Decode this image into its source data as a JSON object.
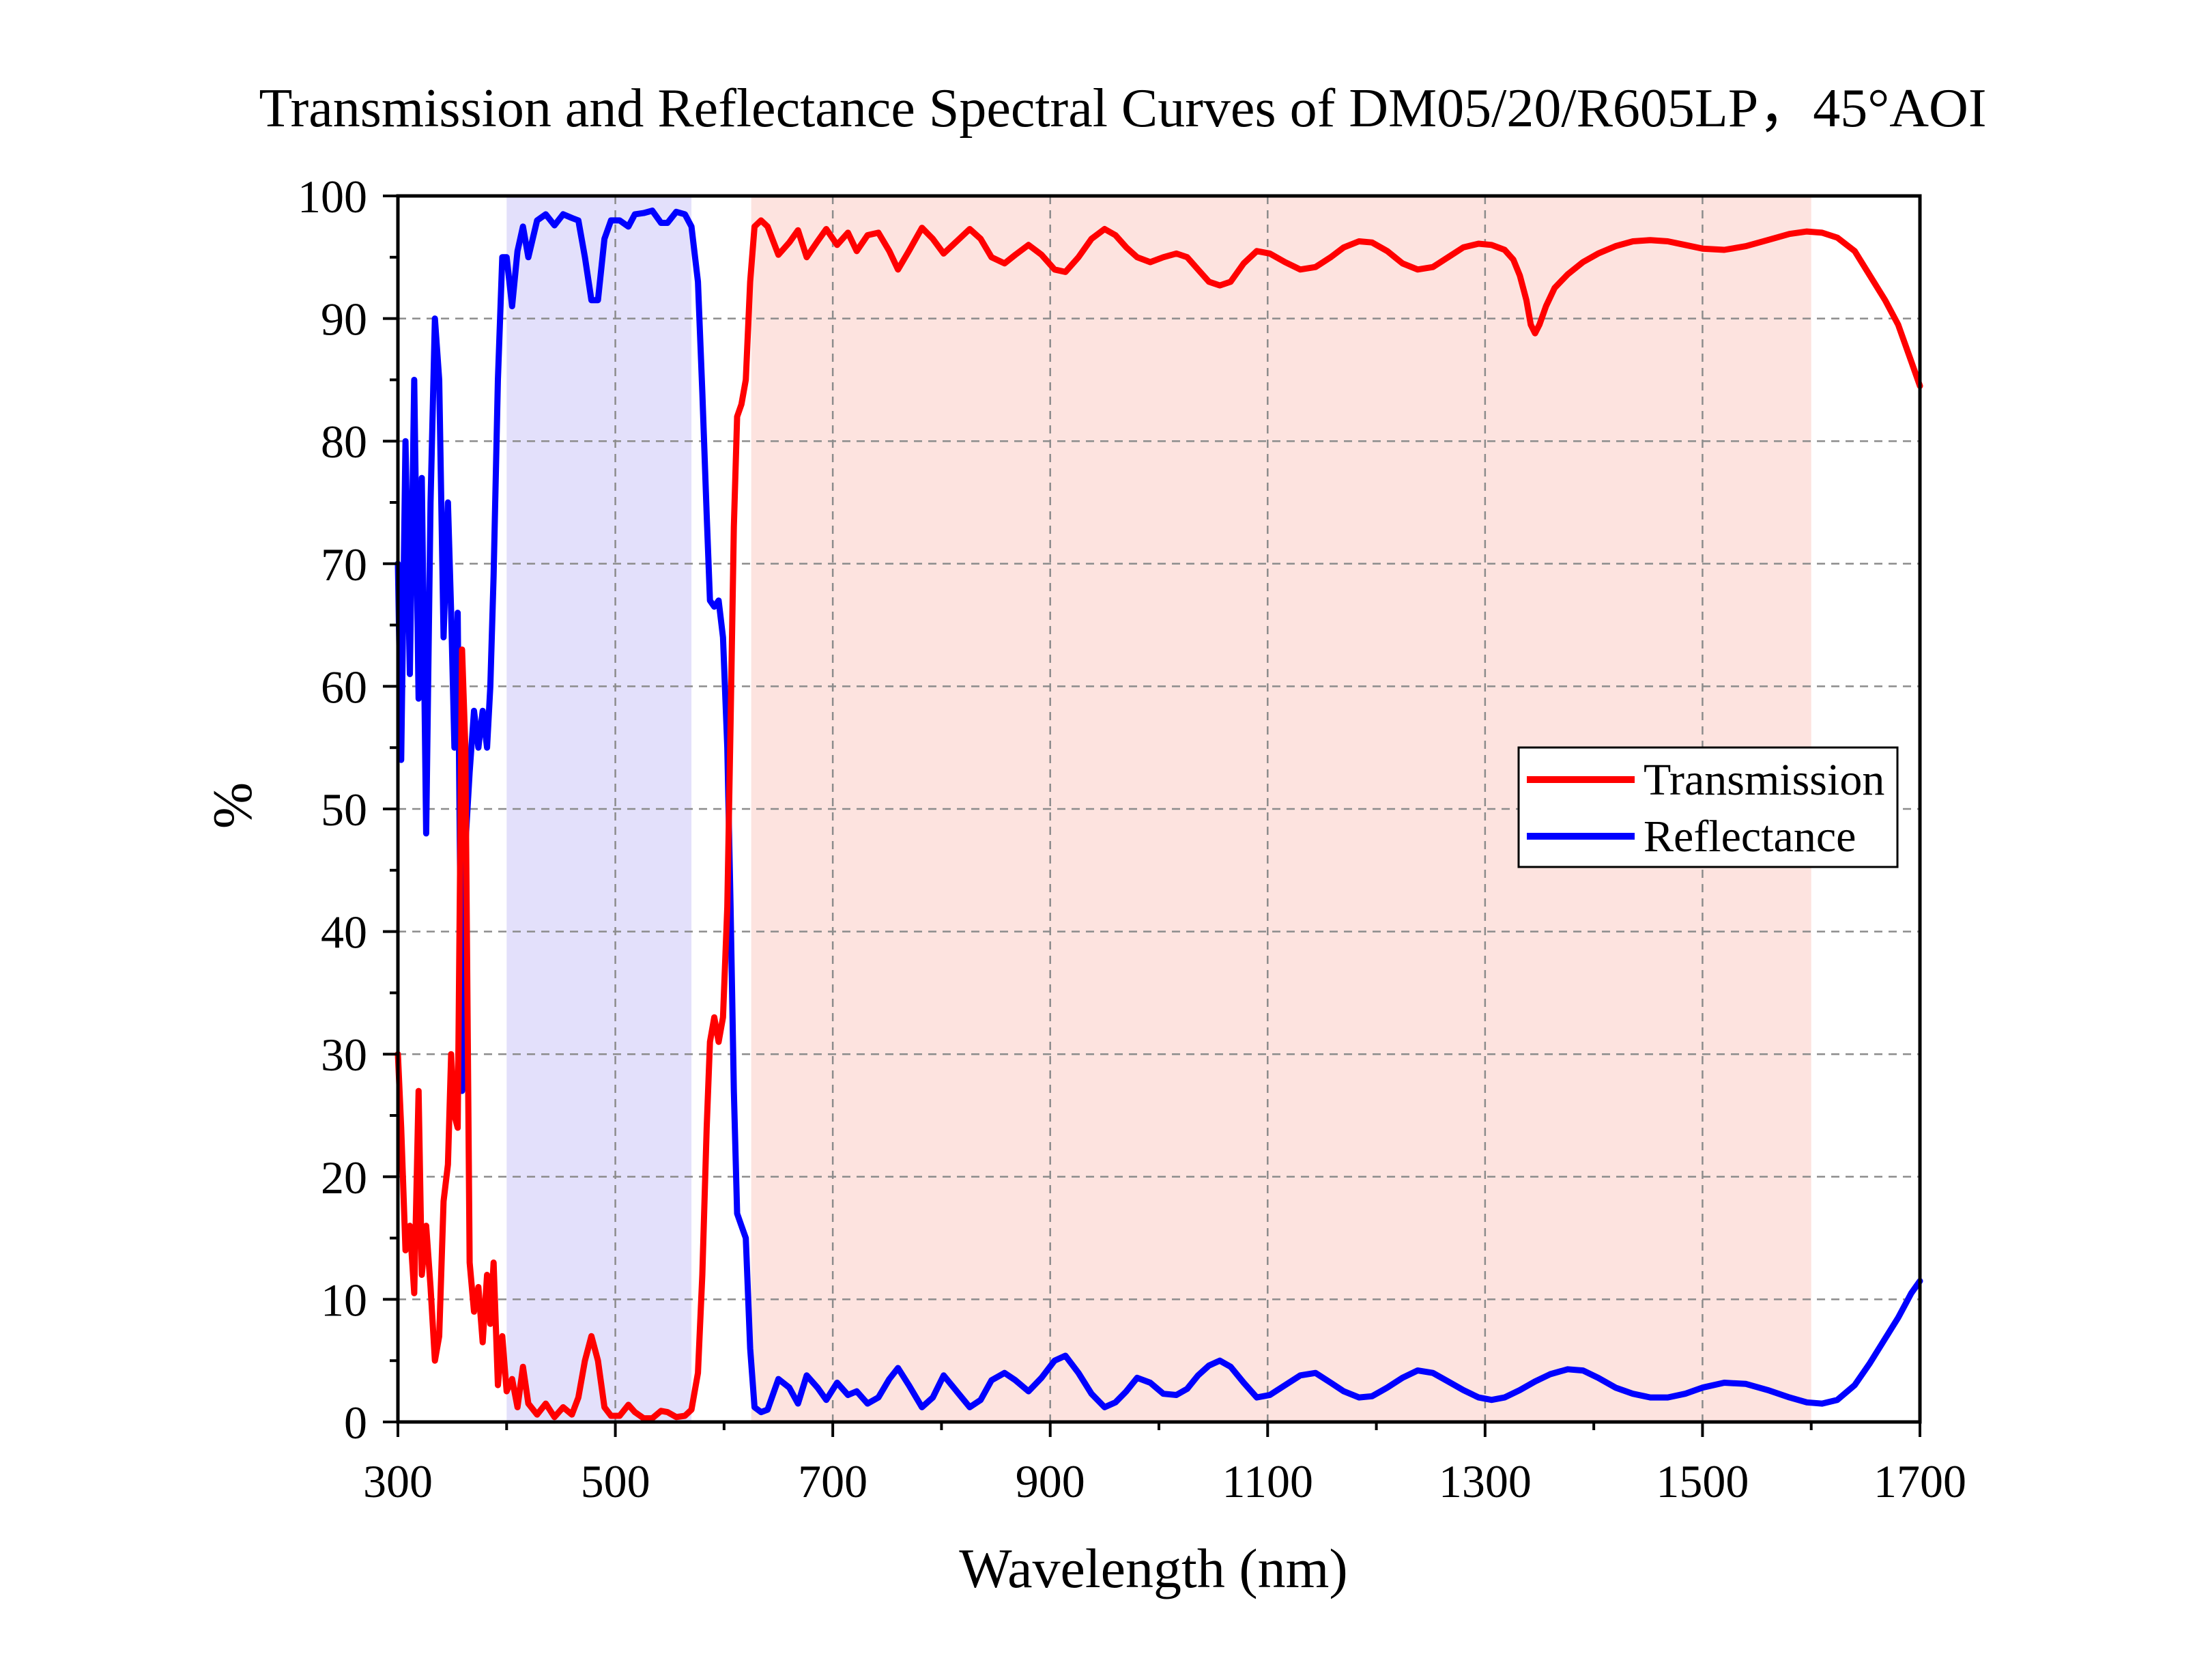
{
  "chart_data": {
    "type": "line",
    "title": "Transmission and Reflectance Spectral Curves of DM05/20/R605LP，45°AOI",
    "xlabel": "Wavelength (nm)",
    "ylabel": "%",
    "xlim": [
      300,
      1700
    ],
    "ylim": [
      0,
      100
    ],
    "x_ticks": [
      "300",
      "500",
      "700",
      "900",
      "1100",
      "1300",
      "1500",
      "1700"
    ],
    "y_ticks": [
      "0",
      "10",
      "20",
      "30",
      "40",
      "50",
      "60",
      "70",
      "80",
      "90",
      "100"
    ],
    "grid": true,
    "legend_position": "right",
    "shaded_regions": [
      {
        "from": 400,
        "to": 570,
        "color": "#e3e0fb"
      },
      {
        "from": 625,
        "to": 1600,
        "color": "#fde3df"
      }
    ],
    "series": [
      {
        "name": "Transmission",
        "color": "#ff0000",
        "points": [
          [
            300,
            30
          ],
          [
            303,
            24
          ],
          [
            307,
            14
          ],
          [
            311,
            16
          ],
          [
            315,
            10.5
          ],
          [
            319,
            27
          ],
          [
            322,
            12
          ],
          [
            326,
            16
          ],
          [
            330,
            11
          ],
          [
            334,
            5
          ],
          [
            338,
            7
          ],
          [
            342,
            18
          ],
          [
            346,
            21
          ],
          [
            349,
            30
          ],
          [
            352,
            25
          ],
          [
            355,
            24
          ],
          [
            359,
            63
          ],
          [
            362,
            55
          ],
          [
            366,
            13
          ],
          [
            370,
            9
          ],
          [
            374,
            11
          ],
          [
            378,
            6.5
          ],
          [
            382,
            12
          ],
          [
            385,
            8
          ],
          [
            388,
            13
          ],
          [
            392,
            3
          ],
          [
            396,
            7
          ],
          [
            400,
            2.5
          ],
          [
            405,
            3.5
          ],
          [
            410,
            1.2
          ],
          [
            415,
            4.5
          ],
          [
            420,
            1.5
          ],
          [
            428,
            0.6
          ],
          [
            436,
            1.5
          ],
          [
            444,
            0.4
          ],
          [
            452,
            1.2
          ],
          [
            460,
            0.6
          ],
          [
            466,
            2
          ],
          [
            472,
            5
          ],
          [
            478,
            7
          ],
          [
            484,
            5
          ],
          [
            490,
            1.2
          ],
          [
            496,
            0.5
          ],
          [
            504,
            0.5
          ],
          [
            512,
            1.4
          ],
          [
            518,
            0.8
          ],
          [
            526,
            0.3
          ],
          [
            534,
            0.3
          ],
          [
            542,
            0.9
          ],
          [
            548,
            0.8
          ],
          [
            556,
            0.4
          ],
          [
            564,
            0.5
          ],
          [
            570,
            1
          ],
          [
            576,
            4
          ],
          [
            580,
            12
          ],
          [
            584,
            24
          ],
          [
            587,
            31
          ],
          [
            591,
            33
          ],
          [
            595,
            31
          ],
          [
            599,
            33
          ],
          [
            603,
            42
          ],
          [
            606,
            57
          ],
          [
            609,
            73
          ],
          [
            612,
            82
          ],
          [
            616,
            83
          ],
          [
            620,
            85
          ],
          [
            624,
            93
          ],
          [
            628,
            97.5
          ],
          [
            634,
            98
          ],
          [
            640,
            97.5
          ],
          [
            650,
            95.2
          ],
          [
            660,
            96.2
          ],
          [
            668,
            97.2
          ],
          [
            676,
            95
          ],
          [
            686,
            96.3
          ],
          [
            694,
            97.3
          ],
          [
            704,
            96
          ],
          [
            714,
            97
          ],
          [
            722,
            95.5
          ],
          [
            732,
            96.8
          ],
          [
            742,
            97
          ],
          [
            752,
            95.5
          ],
          [
            760,
            94
          ],
          [
            770,
            95.5
          ],
          [
            782,
            97.4
          ],
          [
            792,
            96.5
          ],
          [
            802,
            95.3
          ],
          [
            814,
            96.3
          ],
          [
            826,
            97.3
          ],
          [
            836,
            96.5
          ],
          [
            846,
            95
          ],
          [
            858,
            94.5
          ],
          [
            868,
            95.2
          ],
          [
            880,
            96
          ],
          [
            892,
            95.2
          ],
          [
            904,
            94
          ],
          [
            914,
            93.8
          ],
          [
            926,
            95
          ],
          [
            938,
            96.5
          ],
          [
            950,
            97.3
          ],
          [
            960,
            96.8
          ],
          [
            970,
            95.8
          ],
          [
            980,
            95
          ],
          [
            992,
            94.6
          ],
          [
            1004,
            95
          ],
          [
            1016,
            95.3
          ],
          [
            1026,
            95
          ],
          [
            1036,
            94
          ],
          [
            1046,
            93
          ],
          [
            1056,
            92.7
          ],
          [
            1066,
            93
          ],
          [
            1078,
            94.5
          ],
          [
            1090,
            95.5
          ],
          [
            1102,
            95.3
          ],
          [
            1116,
            94.6
          ],
          [
            1130,
            94
          ],
          [
            1144,
            94.2
          ],
          [
            1158,
            95
          ],
          [
            1170,
            95.8
          ],
          [
            1184,
            96.3
          ],
          [
            1196,
            96.2
          ],
          [
            1210,
            95.5
          ],
          [
            1224,
            94.5
          ],
          [
            1238,
            94
          ],
          [
            1252,
            94.2
          ],
          [
            1266,
            95
          ],
          [
            1280,
            95.8
          ],
          [
            1294,
            96.1
          ],
          [
            1306,
            96
          ],
          [
            1318,
            95.6
          ],
          [
            1326,
            94.8
          ],
          [
            1332,
            93.5
          ],
          [
            1338,
            91.5
          ],
          [
            1342,
            89.5
          ],
          [
            1346,
            88.8
          ],
          [
            1350,
            89.5
          ],
          [
            1356,
            91
          ],
          [
            1364,
            92.5
          ],
          [
            1376,
            93.6
          ],
          [
            1390,
            94.6
          ],
          [
            1404,
            95.3
          ],
          [
            1420,
            95.9
          ],
          [
            1436,
            96.3
          ],
          [
            1452,
            96.4
          ],
          [
            1468,
            96.3
          ],
          [
            1484,
            96
          ],
          [
            1500,
            95.7
          ],
          [
            1520,
            95.6
          ],
          [
            1540,
            95.9
          ],
          [
            1560,
            96.4
          ],
          [
            1580,
            96.9
          ],
          [
            1596,
            97.1
          ],
          [
            1610,
            97
          ],
          [
            1624,
            96.6
          ],
          [
            1640,
            95.5
          ],
          [
            1654,
            93.5
          ],
          [
            1668,
            91.5
          ],
          [
            1680,
            89.5
          ],
          [
            1692,
            86.5
          ],
          [
            1700,
            84.5
          ]
        ]
      },
      {
        "name": "Reflectance",
        "color": "#0000ff",
        "points": [
          [
            300,
            70
          ],
          [
            303,
            54
          ],
          [
            307,
            80
          ],
          [
            311,
            61
          ],
          [
            315,
            85
          ],
          [
            319,
            59
          ],
          [
            322,
            77
          ],
          [
            326,
            48
          ],
          [
            330,
            75
          ],
          [
            334,
            90
          ],
          [
            338,
            85
          ],
          [
            342,
            64
          ],
          [
            346,
            75
          ],
          [
            349,
            66
          ],
          [
            352,
            55
          ],
          [
            355,
            66
          ],
          [
            359,
            27
          ],
          [
            362,
            47
          ],
          [
            366,
            53
          ],
          [
            370,
            58
          ],
          [
            374,
            55
          ],
          [
            378,
            58
          ],
          [
            382,
            55
          ],
          [
            385,
            60
          ],
          [
            388,
            69
          ],
          [
            392,
            85
          ],
          [
            396,
            95
          ],
          [
            400,
            95
          ],
          [
            405,
            91
          ],
          [
            410,
            95.5
          ],
          [
            415,
            97.5
          ],
          [
            420,
            95
          ],
          [
            428,
            98
          ],
          [
            436,
            98.5
          ],
          [
            444,
            97.6
          ],
          [
            452,
            98.5
          ],
          [
            460,
            98.2
          ],
          [
            466,
            98
          ],
          [
            472,
            95
          ],
          [
            478,
            91.5
          ],
          [
            484,
            91.5
          ],
          [
            490,
            96.5
          ],
          [
            496,
            98
          ],
          [
            504,
            98
          ],
          [
            512,
            97.5
          ],
          [
            518,
            98.5
          ],
          [
            526,
            98.6
          ],
          [
            534,
            98.8
          ],
          [
            542,
            97.8
          ],
          [
            548,
            97.8
          ],
          [
            556,
            98.7
          ],
          [
            564,
            98.5
          ],
          [
            570,
            97.5
          ],
          [
            576,
            93
          ],
          [
            580,
            84
          ],
          [
            584,
            74
          ],
          [
            587,
            67
          ],
          [
            591,
            66.5
          ],
          [
            595,
            67
          ],
          [
            599,
            64
          ],
          [
            603,
            55
          ],
          [
            606,
            42
          ],
          [
            609,
            27
          ],
          [
            612,
            17
          ],
          [
            616,
            16
          ],
          [
            620,
            15
          ],
          [
            624,
            6
          ],
          [
            628,
            1.2
          ],
          [
            634,
            0.8
          ],
          [
            640,
            1
          ],
          [
            650,
            3.5
          ],
          [
            660,
            2.8
          ],
          [
            668,
            1.5
          ],
          [
            676,
            3.8
          ],
          [
            686,
            2.8
          ],
          [
            694,
            1.8
          ],
          [
            704,
            3.2
          ],
          [
            714,
            2.2
          ],
          [
            722,
            2.5
          ],
          [
            732,
            1.5
          ],
          [
            742,
            2
          ],
          [
            752,
            3.5
          ],
          [
            760,
            4.4
          ],
          [
            770,
            3
          ],
          [
            782,
            1.2
          ],
          [
            792,
            2
          ],
          [
            802,
            3.8
          ],
          [
            814,
            2.5
          ],
          [
            826,
            1.2
          ],
          [
            836,
            1.8
          ],
          [
            846,
            3.4
          ],
          [
            858,
            4
          ],
          [
            868,
            3.4
          ],
          [
            880,
            2.5
          ],
          [
            892,
            3.6
          ],
          [
            904,
            5
          ],
          [
            914,
            5.4
          ],
          [
            926,
            4
          ],
          [
            938,
            2.3
          ],
          [
            950,
            1.2
          ],
          [
            960,
            1.6
          ],
          [
            970,
            2.5
          ],
          [
            980,
            3.6
          ],
          [
            992,
            3.2
          ],
          [
            1004,
            2.3
          ],
          [
            1016,
            2.2
          ],
          [
            1026,
            2.7
          ],
          [
            1036,
            3.8
          ],
          [
            1046,
            4.6
          ],
          [
            1056,
            5
          ],
          [
            1066,
            4.5
          ],
          [
            1078,
            3.2
          ],
          [
            1090,
            2
          ],
          [
            1102,
            2.2
          ],
          [
            1116,
            3
          ],
          [
            1130,
            3.8
          ],
          [
            1144,
            4
          ],
          [
            1158,
            3.2
          ],
          [
            1170,
            2.5
          ],
          [
            1184,
            2
          ],
          [
            1196,
            2.1
          ],
          [
            1210,
            2.8
          ],
          [
            1224,
            3.6
          ],
          [
            1238,
            4.2
          ],
          [
            1252,
            4
          ],
          [
            1266,
            3.3
          ],
          [
            1280,
            2.6
          ],
          [
            1294,
            2
          ],
          [
            1306,
            1.8
          ],
          [
            1318,
            2
          ],
          [
            1332,
            2.6
          ],
          [
            1346,
            3.3
          ],
          [
            1360,
            3.9
          ],
          [
            1376,
            4.3
          ],
          [
            1390,
            4.2
          ],
          [
            1404,
            3.6
          ],
          [
            1420,
            2.8
          ],
          [
            1436,
            2.3
          ],
          [
            1452,
            2
          ],
          [
            1468,
            2
          ],
          [
            1484,
            2.3
          ],
          [
            1500,
            2.8
          ],
          [
            1520,
            3.2
          ],
          [
            1540,
            3.1
          ],
          [
            1560,
            2.6
          ],
          [
            1580,
            2
          ],
          [
            1596,
            1.6
          ],
          [
            1610,
            1.5
          ],
          [
            1624,
            1.8
          ],
          [
            1640,
            3
          ],
          [
            1654,
            4.8
          ],
          [
            1668,
            6.8
          ],
          [
            1680,
            8.5
          ],
          [
            1692,
            10.5
          ],
          [
            1700,
            11.5
          ]
        ]
      }
    ]
  }
}
